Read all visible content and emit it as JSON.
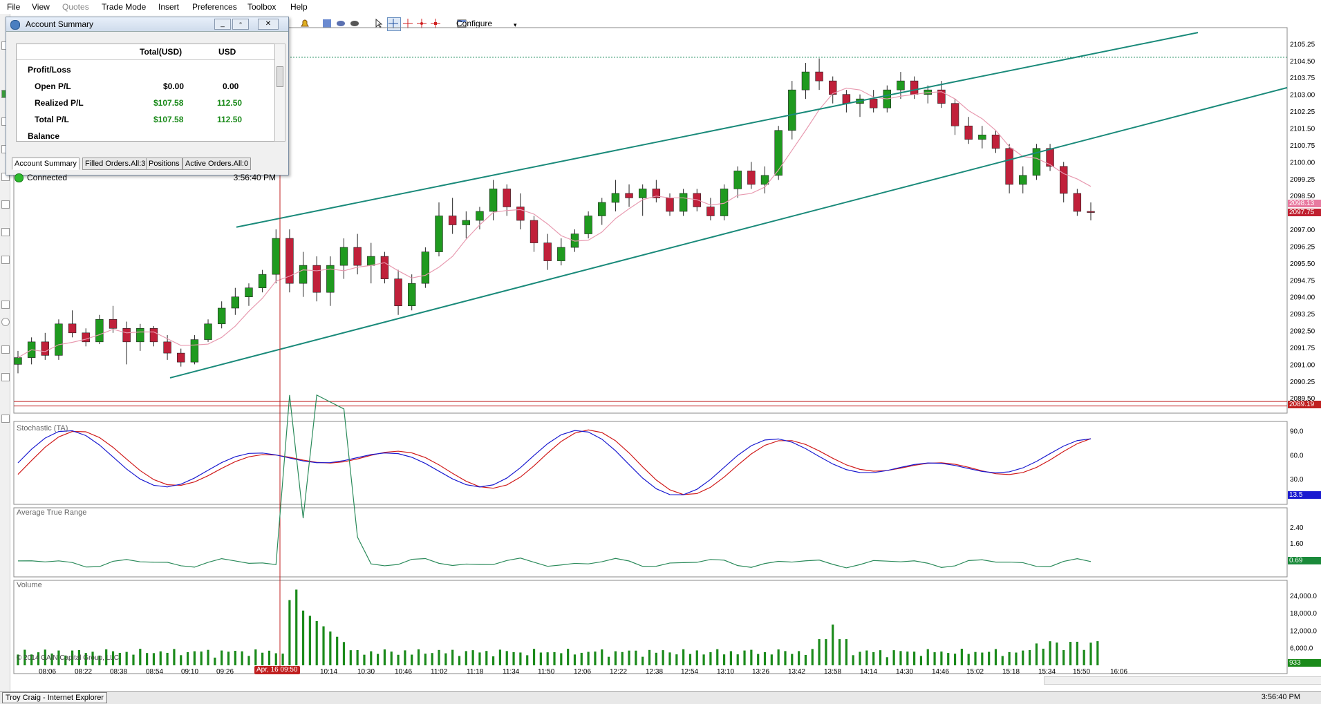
{
  "menu": {
    "items": [
      "File",
      "View",
      "Quotes",
      "Trade Mode",
      "Insert",
      "Preferences",
      "Toolbox",
      "Help"
    ],
    "disabled": [
      "Quotes"
    ]
  },
  "toolbar": {
    "configure_label": "Configure"
  },
  "account_window": {
    "title": "Account Summary",
    "col_total": "Total(USD)",
    "col_usd": "USD",
    "section_profit": "Profit/Loss",
    "rows": [
      {
        "label": "Open P/L",
        "total": "$0.00",
        "usd": "0.00",
        "positive": false
      },
      {
        "label": "Realized P/L",
        "total": "$107.58",
        "usd": "112.50",
        "positive": true
      },
      {
        "label": "Total P/L",
        "total": "$107.58",
        "usd": "112.50",
        "positive": true
      }
    ],
    "section_balance": "Balance",
    "tabs": [
      "Account Summary",
      "Filled Orders.All:3",
      "Positions",
      "Active Orders.All:0"
    ],
    "status_text": "Connected",
    "status_time": "3:56:40 PM"
  },
  "colors": {
    "bull": "#1f9a1f",
    "bear": "#c0203a",
    "channel": "#1a8a7a",
    "ma": "#e89ab0",
    "stoch_k": "#1a1ad0",
    "stoch_d": "#d01a1a",
    "atr": "#2a8a5a",
    "volume": "#1a8a1a",
    "crosshair": "#c02020"
  },
  "panels": {
    "stochastic_title": "Stochastic (TA)",
    "atr_title": "Average True Range",
    "volume_title": "Volume"
  },
  "price_axis": [
    "2105.25",
    "2104.50",
    "2103.75",
    "2103.00",
    "2102.25",
    "2101.50",
    "2100.75",
    "2100.00",
    "2099.25",
    "2098.50",
    "2097.00",
    "2096.25",
    "2095.50",
    "2094.75",
    "2094.00",
    "2093.25",
    "2092.50",
    "2091.75",
    "2091.00",
    "2090.25",
    "2089.50"
  ],
  "price_tags": [
    {
      "label": "2098.13",
      "color": "#e87aa0",
      "value": 2098.13
    },
    {
      "label": "2097.75",
      "color": "#c02030",
      "value": 2097.75
    },
    {
      "label": "2089.19",
      "color": "#c02020",
      "value": 2089.19
    }
  ],
  "stoch_axis": [
    "90.0",
    "60.0",
    "30.0"
  ],
  "stoch_tag": "13.5",
  "atr_axis": [
    "2.40",
    "1.60"
  ],
  "atr_tag": "0.69",
  "vol_axis": [
    "24,000.0",
    "18,000.0",
    "12,000.0",
    "6,000.0"
  ],
  "vol_tag": "933",
  "time_axis": [
    "08:06",
    "08:22",
    "08:38",
    "08:54",
    "09:10",
    "09:26",
    "10:14",
    "10:30",
    "10:46",
    "11:02",
    "11:18",
    "11:34",
    "11:50",
    "12:06",
    "12:22",
    "12:38",
    "12:54",
    "13:10",
    "13:26",
    "13:42",
    "13:58",
    "14:14",
    "14:30",
    "14:46",
    "15:02",
    "15:18",
    "15:34",
    "15:50",
    "16:06"
  ],
  "crosshair_label": "Apr, 16 09:50",
  "copyright": "© 2014 GAIN Capital Group, LLC",
  "statusbar": {
    "task": "Troy Craig - Internet Explorer",
    "time": "3:56:40 PM"
  },
  "chart_data": {
    "type": "candlestick",
    "symbol_price_range": [
      2089.5,
      2105.25
    ],
    "open_high_low_close_approx": [
      [
        2091.0,
        2091.6,
        2090.6,
        2091.3
      ],
      [
        2091.3,
        2092.2,
        2091.0,
        2092.0
      ],
      [
        2092.0,
        2092.4,
        2091.2,
        2091.4
      ],
      [
        2091.4,
        2093.0,
        2091.2,
        2092.8
      ],
      [
        2092.8,
        2093.4,
        2092.2,
        2092.4
      ],
      [
        2092.4,
        2092.6,
        2091.8,
        2092.0
      ],
      [
        2092.0,
        2093.2,
        2091.9,
        2093.0
      ],
      [
        2093.0,
        2093.6,
        2092.4,
        2092.6
      ],
      [
        2092.6,
        2092.9,
        2091.0,
        2092.0
      ],
      [
        2092.0,
        2092.8,
        2091.6,
        2092.6
      ],
      [
        2092.6,
        2092.7,
        2091.8,
        2092.0
      ],
      [
        2092.0,
        2092.3,
        2091.2,
        2091.5
      ],
      [
        2091.5,
        2091.7,
        2090.9,
        2091.1
      ],
      [
        2091.1,
        2092.3,
        2091.0,
        2092.1
      ],
      [
        2092.1,
        2093.0,
        2092.0,
        2092.8
      ],
      [
        2092.8,
        2093.8,
        2092.6,
        2093.5
      ],
      [
        2093.5,
        2094.4,
        2093.2,
        2094.0
      ],
      [
        2094.0,
        2094.6,
        2093.6,
        2094.4
      ],
      [
        2094.4,
        2095.2,
        2094.2,
        2095.0
      ],
      [
        2095.0,
        2097.0,
        2094.6,
        2096.6
      ],
      [
        2096.6,
        2097.0,
        2094.2,
        2094.6
      ],
      [
        2094.6,
        2096.0,
        2094.0,
        2095.4
      ],
      [
        2095.4,
        2095.8,
        2093.8,
        2094.2
      ],
      [
        2094.2,
        2095.8,
        2093.6,
        2095.4
      ],
      [
        2095.4,
        2096.6,
        2094.8,
        2096.2
      ],
      [
        2096.2,
        2096.8,
        2095.0,
        2095.4
      ],
      [
        2095.4,
        2096.4,
        2094.6,
        2095.8
      ],
      [
        2095.8,
        2096.0,
        2094.6,
        2094.8
      ],
      [
        2094.8,
        2095.2,
        2093.2,
        2093.6
      ],
      [
        2093.6,
        2095.0,
        2093.4,
        2094.6
      ],
      [
        2094.6,
        2096.2,
        2094.4,
        2096.0
      ],
      [
        2096.0,
        2098.2,
        2095.8,
        2097.6
      ],
      [
        2097.6,
        2098.4,
        2096.8,
        2097.2
      ],
      [
        2097.2,
        2097.8,
        2096.6,
        2097.4
      ],
      [
        2097.4,
        2098.0,
        2097.0,
        2097.8
      ],
      [
        2097.8,
        2099.2,
        2097.4,
        2098.8
      ],
      [
        2098.8,
        2099.0,
        2097.6,
        2098.0
      ],
      [
        2098.0,
        2098.6,
        2097.0,
        2097.4
      ],
      [
        2097.4,
        2097.6,
        2096.0,
        2096.4
      ],
      [
        2096.4,
        2096.8,
        2095.2,
        2095.6
      ],
      [
        2095.6,
        2096.6,
        2095.4,
        2096.2
      ],
      [
        2096.2,
        2097.0,
        2096.0,
        2096.8
      ],
      [
        2096.8,
        2097.8,
        2096.6,
        2097.6
      ],
      [
        2097.6,
        2098.4,
        2097.2,
        2098.2
      ],
      [
        2098.2,
        2099.2,
        2097.8,
        2098.6
      ],
      [
        2098.6,
        2099.0,
        2098.0,
        2098.4
      ],
      [
        2098.4,
        2099.0,
        2097.6,
        2098.8
      ],
      [
        2098.8,
        2099.2,
        2098.2,
        2098.4
      ],
      [
        2098.4,
        2098.6,
        2097.6,
        2097.8
      ],
      [
        2097.8,
        2098.8,
        2097.6,
        2098.6
      ],
      [
        2098.6,
        2098.8,
        2097.8,
        2098.0
      ],
      [
        2098.0,
        2098.4,
        2097.4,
        2097.6
      ],
      [
        2097.6,
        2099.0,
        2097.4,
        2098.8
      ],
      [
        2098.8,
        2099.8,
        2098.4,
        2099.6
      ],
      [
        2099.6,
        2100.0,
        2098.8,
        2099.0
      ],
      [
        2099.0,
        2099.8,
        2098.6,
        2099.4
      ],
      [
        2099.4,
        2101.6,
        2099.2,
        2101.4
      ],
      [
        2101.4,
        2103.6,
        2101.0,
        2103.2
      ],
      [
        2103.2,
        2104.4,
        2102.8,
        2104.0
      ],
      [
        2104.0,
        2104.6,
        2103.2,
        2103.6
      ],
      [
        2103.6,
        2103.8,
        2102.6,
        2103.0
      ],
      [
        2103.0,
        2103.2,
        2102.2,
        2102.6
      ],
      [
        2102.6,
        2103.0,
        2102.0,
        2102.8
      ],
      [
        2102.8,
        2103.2,
        2102.2,
        2102.4
      ],
      [
        2102.4,
        2103.4,
        2102.2,
        2103.2
      ],
      [
        2103.2,
        2104.0,
        2102.8,
        2103.6
      ],
      [
        2103.6,
        2103.8,
        2102.8,
        2103.0
      ],
      [
        2103.0,
        2103.4,
        2102.6,
        2103.2
      ],
      [
        2103.2,
        2103.6,
        2102.4,
        2102.6
      ],
      [
        2102.6,
        2102.8,
        2101.2,
        2101.6
      ],
      [
        2101.6,
        2102.0,
        2100.8,
        2101.0
      ],
      [
        2101.0,
        2101.6,
        2100.6,
        2101.2
      ],
      [
        2101.2,
        2101.4,
        2100.4,
        2100.6
      ],
      [
        2100.6,
        2100.8,
        2098.6,
        2099.0
      ],
      [
        2099.0,
        2099.8,
        2098.6,
        2099.4
      ],
      [
        2099.4,
        2100.8,
        2099.2,
        2100.6
      ],
      [
        2100.6,
        2100.8,
        2099.6,
        2099.8
      ],
      [
        2099.8,
        2100.0,
        2098.2,
        2098.6
      ],
      [
        2098.6,
        2098.8,
        2097.6,
        2097.8
      ],
      [
        2097.8,
        2098.2,
        2097.4,
        2097.75
      ]
    ]
  }
}
